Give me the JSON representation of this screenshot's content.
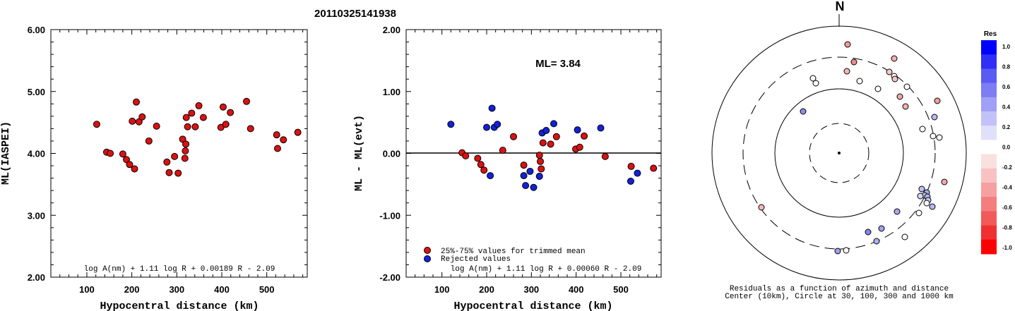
{
  "event_id": "20110325141938",
  "left": {
    "ylabel": "ML(IASPEI)",
    "xlabel": "Hypocentral distance (km)",
    "formula": "log A(nm) + 1.11 log R + 0.00189 R - 2.09",
    "yticks": [
      "6.00",
      "5.00",
      "4.00",
      "3.00",
      "2.00"
    ],
    "xticks": [
      "100",
      "200",
      "300",
      "400",
      "500"
    ]
  },
  "middle": {
    "ylabel": "ML - ML(evt)",
    "xlabel": "Hypocentral distance (km)",
    "ml_label": "ML= 3.84",
    "formula": "log A(nm) + 1.11 log R + 0.00060 R - 2.09",
    "legend_red": "25%-75% values for trimmed mean",
    "legend_blue": "Rejected values",
    "yticks": [
      "2.00",
      "1.00",
      "0.00",
      "-1.00",
      "-2.00"
    ],
    "xticks": [
      "100",
      "200",
      "300",
      "400",
      "500"
    ]
  },
  "polar": {
    "north": "N",
    "caption1": "Residuals as a function of azimuth and distance",
    "caption2": "Center (10km), Circle at 30, 100, 300 and 1000 km"
  },
  "colorbar": {
    "title": "Res",
    "labels": [
      "1.0",
      "0.8",
      "0.6",
      "0.4",
      "0.2",
      "0.0",
      "-0.2",
      "-0.4",
      "-0.6",
      "-0.8",
      "-1.0"
    ]
  },
  "colors": {
    "accepted": "#dd1111",
    "rejected": "#1122dd"
  },
  "chart_data": [
    {
      "type": "scatter",
      "xlabel": "Hypocentral distance (km)",
      "ylabel": "ML(IASPEI)",
      "xlim": [
        20,
        590
      ],
      "ylim": [
        2.0,
        6.0
      ],
      "points": [
        [
          122,
          4.47
        ],
        [
          144,
          4.02
        ],
        [
          152,
          4.0
        ],
        [
          180,
          3.99
        ],
        [
          188,
          3.9
        ],
        [
          195,
          3.82
        ],
        [
          201,
          4.52
        ],
        [
          206,
          3.75
        ],
        [
          210,
          4.83
        ],
        [
          216,
          4.51
        ],
        [
          223,
          4.59
        ],
        [
          238,
          4.2
        ],
        [
          255,
          4.44
        ],
        [
          278,
          3.86
        ],
        [
          283,
          3.69
        ],
        [
          295,
          3.95
        ],
        [
          303,
          3.68
        ],
        [
          313,
          4.23
        ],
        [
          318,
          3.92
        ],
        [
          319,
          4.04
        ],
        [
          320,
          4.15
        ],
        [
          321,
          4.58
        ],
        [
          324,
          4.43
        ],
        [
          333,
          4.65
        ],
        [
          341,
          4.43
        ],
        [
          349,
          4.77
        ],
        [
          359,
          4.58
        ],
        [
          398,
          4.42
        ],
        [
          403,
          4.75
        ],
        [
          409,
          4.47
        ],
        [
          419,
          4.66
        ],
        [
          455,
          4.84
        ],
        [
          464,
          4.4
        ],
        [
          522,
          4.3
        ],
        [
          524,
          4.08
        ],
        [
          537,
          4.22
        ],
        [
          569,
          4.34
        ]
      ]
    },
    {
      "type": "scatter",
      "xlabel": "Hypocentral distance (km)",
      "ylabel": "ML - ML(evt)",
      "xlim": [
        20,
        590
      ],
      "ylim": [
        -2.0,
        2.0
      ],
      "series": [
        {
          "name": "25%-75% values for trimmed mean",
          "points": [
            [
              145,
              0.01
            ],
            [
              153,
              -0.04
            ],
            [
              180,
              -0.08
            ],
            [
              187,
              -0.18
            ],
            [
              194,
              -0.27
            ],
            [
              236,
              0.05
            ],
            [
              260,
              0.27
            ],
            [
              283,
              -0.19
            ],
            [
              318,
              -0.03
            ],
            [
              320,
              -0.13
            ],
            [
              322,
              -0.25
            ],
            [
              326,
              0.17
            ],
            [
              343,
              0.15
            ],
            [
              356,
              0.27
            ],
            [
              399,
              0.07
            ],
            [
              408,
              0.1
            ],
            [
              418,
              0.28
            ],
            [
              465,
              -0.05
            ],
            [
              523,
              -0.21
            ],
            [
              573,
              -0.24
            ]
          ]
        },
        {
          "name": "Rejected values",
          "points": [
            [
              120,
              0.47
            ],
            [
              200,
              0.42
            ],
            [
              208,
              -0.36
            ],
            [
              212,
              0.73
            ],
            [
              217,
              0.42
            ],
            [
              224,
              0.47
            ],
            [
              283,
              -0.36
            ],
            [
              287,
              -0.52
            ],
            [
              297,
              -0.29
            ],
            [
              305,
              -0.55
            ],
            [
              318,
              -0.37
            ],
            [
              324,
              0.33
            ],
            [
              333,
              0.37
            ],
            [
              350,
              0.48
            ],
            [
              403,
              0.38
            ],
            [
              455,
              0.41
            ],
            [
              522,
              -0.45
            ],
            [
              537,
              -0.32
            ]
          ]
        }
      ],
      "hline": 0.0
    }
  ]
}
